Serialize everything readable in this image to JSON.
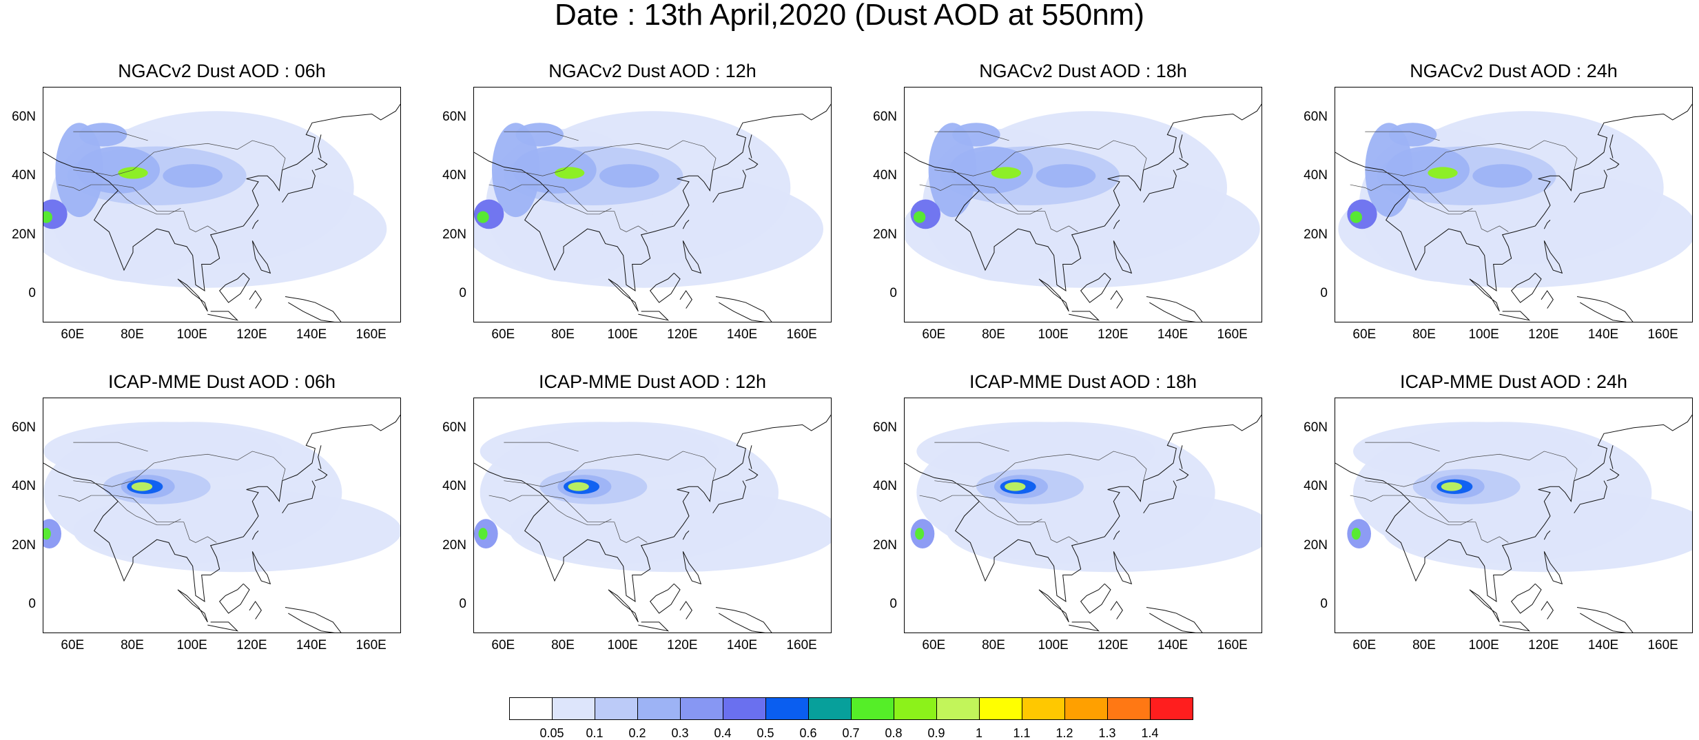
{
  "title": "Date : 13th April,2020 (Dust AOD at 550nm)",
  "panels": [
    {
      "title": "NGACv2 Dust AOD : 06h",
      "model": "NGACv2",
      "hour": "06h"
    },
    {
      "title": "NGACv2 Dust AOD : 12h",
      "model": "NGACv2",
      "hour": "12h"
    },
    {
      "title": "NGACv2 Dust AOD : 18h",
      "model": "NGACv2",
      "hour": "18h"
    },
    {
      "title": "NGACv2 Dust AOD : 24h",
      "model": "NGACv2",
      "hour": "24h"
    },
    {
      "title": "ICAP-MME Dust AOD : 06h",
      "model": "ICAP-MME",
      "hour": "06h"
    },
    {
      "title": "ICAP-MME Dust AOD : 12h",
      "model": "ICAP-MME",
      "hour": "12h"
    },
    {
      "title": "ICAP-MME Dust AOD : 18h",
      "model": "ICAP-MME",
      "hour": "18h"
    },
    {
      "title": "ICAP-MME Dust AOD : 24h",
      "model": "ICAP-MME",
      "hour": "24h"
    }
  ],
  "map": {
    "lon_range": [
      50,
      170
    ],
    "lat_range": [
      -10,
      70
    ],
    "lat_ticks": [
      "60N",
      "40N",
      "20N",
      "0"
    ],
    "lon_ticks": [
      "60E",
      "80E",
      "100E",
      "120E",
      "140E",
      "160E"
    ]
  },
  "colorbar": {
    "labels": [
      "0.05",
      "0.1",
      "0.2",
      "0.3",
      "0.4",
      "0.5",
      "0.6",
      "0.7",
      "0.8",
      "0.9",
      "1",
      "1.1",
      "1.2",
      "1.3",
      "1.4"
    ],
    "colors": [
      "#ffffff",
      "#dde5fb",
      "#bccbf8",
      "#9db3f5",
      "#8797f3",
      "#6a70ef",
      "#0a5ef0",
      "#07a09b",
      "#55ee28",
      "#8cf21a",
      "#c2f55a",
      "#ffff00",
      "#ffc800",
      "#ffa000",
      "#ff7814",
      "#ff1e1e"
    ]
  }
}
